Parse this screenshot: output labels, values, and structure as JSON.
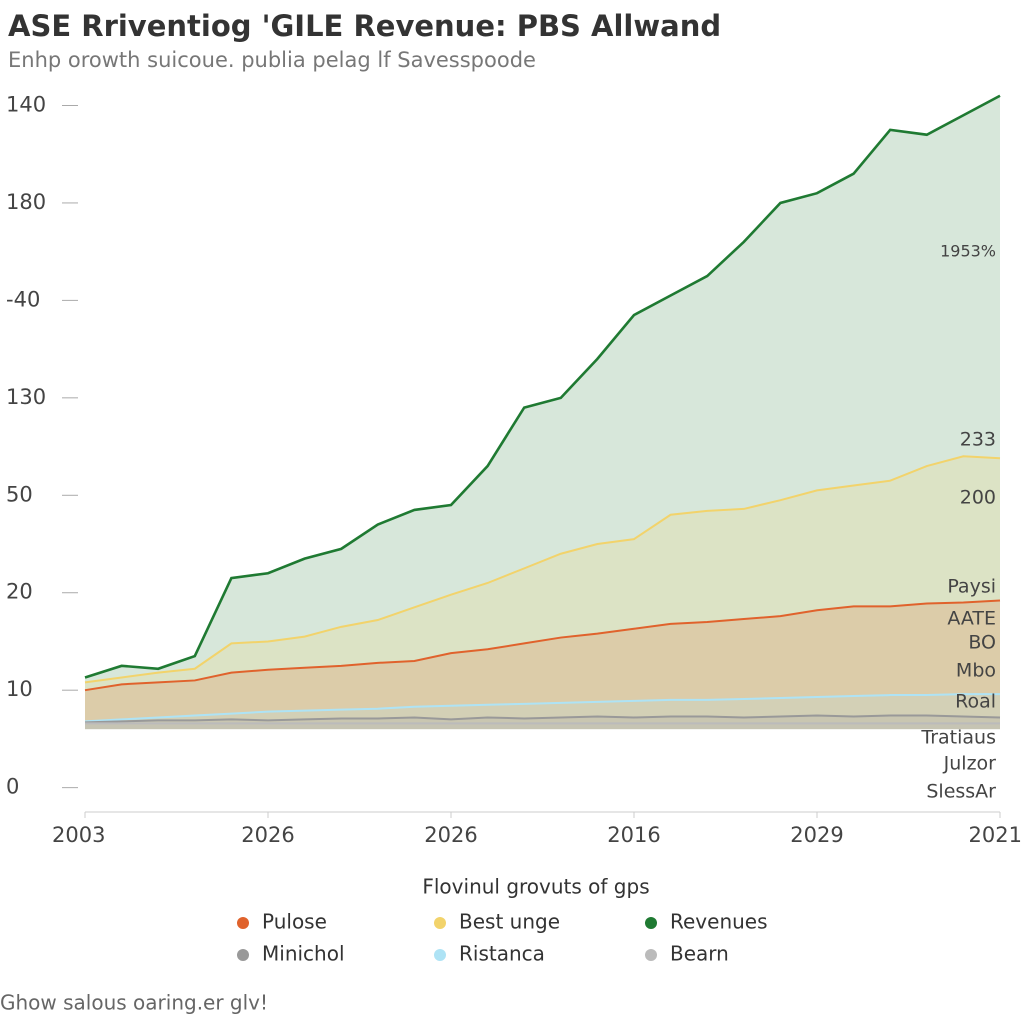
{
  "chart_data": {
    "type": "line",
    "title": "ASE Rriventiog 'GILE Revenue: PBS Allwand",
    "subtitle": "Enhp orowth suicoue. publia pelag lf Savesspoode",
    "x_label": "Flovinul grovuts of gps",
    "footer": "Ghow salous oaring.er glv!",
    "x": [
      0,
      2,
      4,
      6,
      8,
      10,
      12,
      14,
      16,
      18,
      20,
      22,
      24,
      26,
      28,
      30,
      32,
      34,
      36,
      38,
      40,
      42,
      44,
      46,
      48,
      50
    ],
    "xlim": [
      0,
      50
    ],
    "xticks": [
      {
        "value": 0,
        "label": "2003"
      },
      {
        "value": 10,
        "label": "2026"
      },
      {
        "value": 20,
        "label": "2026"
      },
      {
        "value": 30,
        "label": "2016"
      },
      {
        "value": 40,
        "label": "2029"
      },
      {
        "value": 50,
        "label": "2021"
      }
    ],
    "ylim": [
      -2.5,
      72
    ],
    "yticks": [
      0,
      10,
      20,
      {
        "value": 30,
        "label": "50"
      },
      {
        "value": 40,
        "label": "130"
      },
      {
        "value": 50,
        "label": "-40"
      },
      {
        "value": 60,
        "label": "180"
      },
      {
        "value": 70,
        "label": "140"
      }
    ],
    "area_fill": true,
    "series": [
      {
        "name": "Pulose",
        "color": "#e0622c",
        "values": [
          10,
          10.6,
          10.8,
          11,
          11.8,
          12.1,
          12.3,
          12.5,
          12.8,
          13,
          13.8,
          14.2,
          14.8,
          15.4,
          15.8,
          16.3,
          16.8,
          17,
          17.3,
          17.6,
          18.2,
          18.6,
          18.6,
          18.9,
          19,
          19.2
        ]
      },
      {
        "name": "Best unge",
        "color": "#f2d36b",
        "values": [
          10.8,
          11.3,
          11.8,
          12.2,
          14.8,
          15,
          15.5,
          16.5,
          17.2,
          18.5,
          19.8,
          21,
          22.5,
          24,
          25,
          25.5,
          28,
          28.4,
          28.6,
          29.5,
          30.5,
          31,
          31.5,
          33,
          34,
          33.8
        ]
      },
      {
        "name": "Revenues",
        "color": "#1f7a32",
        "values": [
          11.3,
          12.5,
          12.2,
          13.5,
          21.5,
          22,
          23.5,
          24.5,
          27,
          28.5,
          29,
          33,
          39,
          40,
          44,
          48.5,
          50.5,
          52.5,
          56,
          60,
          61,
          63,
          67.5,
          67,
          69,
          71
        ]
      },
      {
        "name": "Minichol",
        "color": "#999999",
        "values": [
          6.7,
          6.8,
          6.9,
          6.9,
          7,
          6.9,
          7,
          7.1,
          7.1,
          7.2,
          7,
          7.2,
          7.1,
          7.2,
          7.3,
          7.2,
          7.3,
          7.3,
          7.2,
          7.3,
          7.4,
          7.3,
          7.4,
          7.4,
          7.3,
          7.2
        ]
      },
      {
        "name": "Ristanca",
        "color": "#aee3f5",
        "values": [
          6.8,
          7,
          7.2,
          7.4,
          7.6,
          7.8,
          7.9,
          8,
          8.1,
          8.3,
          8.4,
          8.5,
          8.6,
          8.7,
          8.8,
          8.9,
          9,
          9,
          9.1,
          9.2,
          9.3,
          9.4,
          9.5,
          9.5,
          9.6,
          9.6
        ]
      },
      {
        "name": "Bearn",
        "color": "#bbbbbb",
        "values": [
          6.6,
          6.6,
          6.6,
          6.6,
          6.6,
          6.6,
          6.6,
          6.6,
          6.6,
          6.6,
          6.6,
          6.6,
          6.6,
          6.6,
          6.6,
          6.6,
          6.6,
          6.6,
          6.6,
          6.6,
          6.6,
          6.6,
          6.6,
          6.6,
          6.6,
          6.6
        ]
      }
    ],
    "annotations": [
      "1953%",
      "233",
      "200",
      "Paysi",
      "AATE",
      "BO",
      "Mbo",
      "Roal",
      "Tratiaus",
      "Julzor",
      "SlessAr"
    ]
  }
}
